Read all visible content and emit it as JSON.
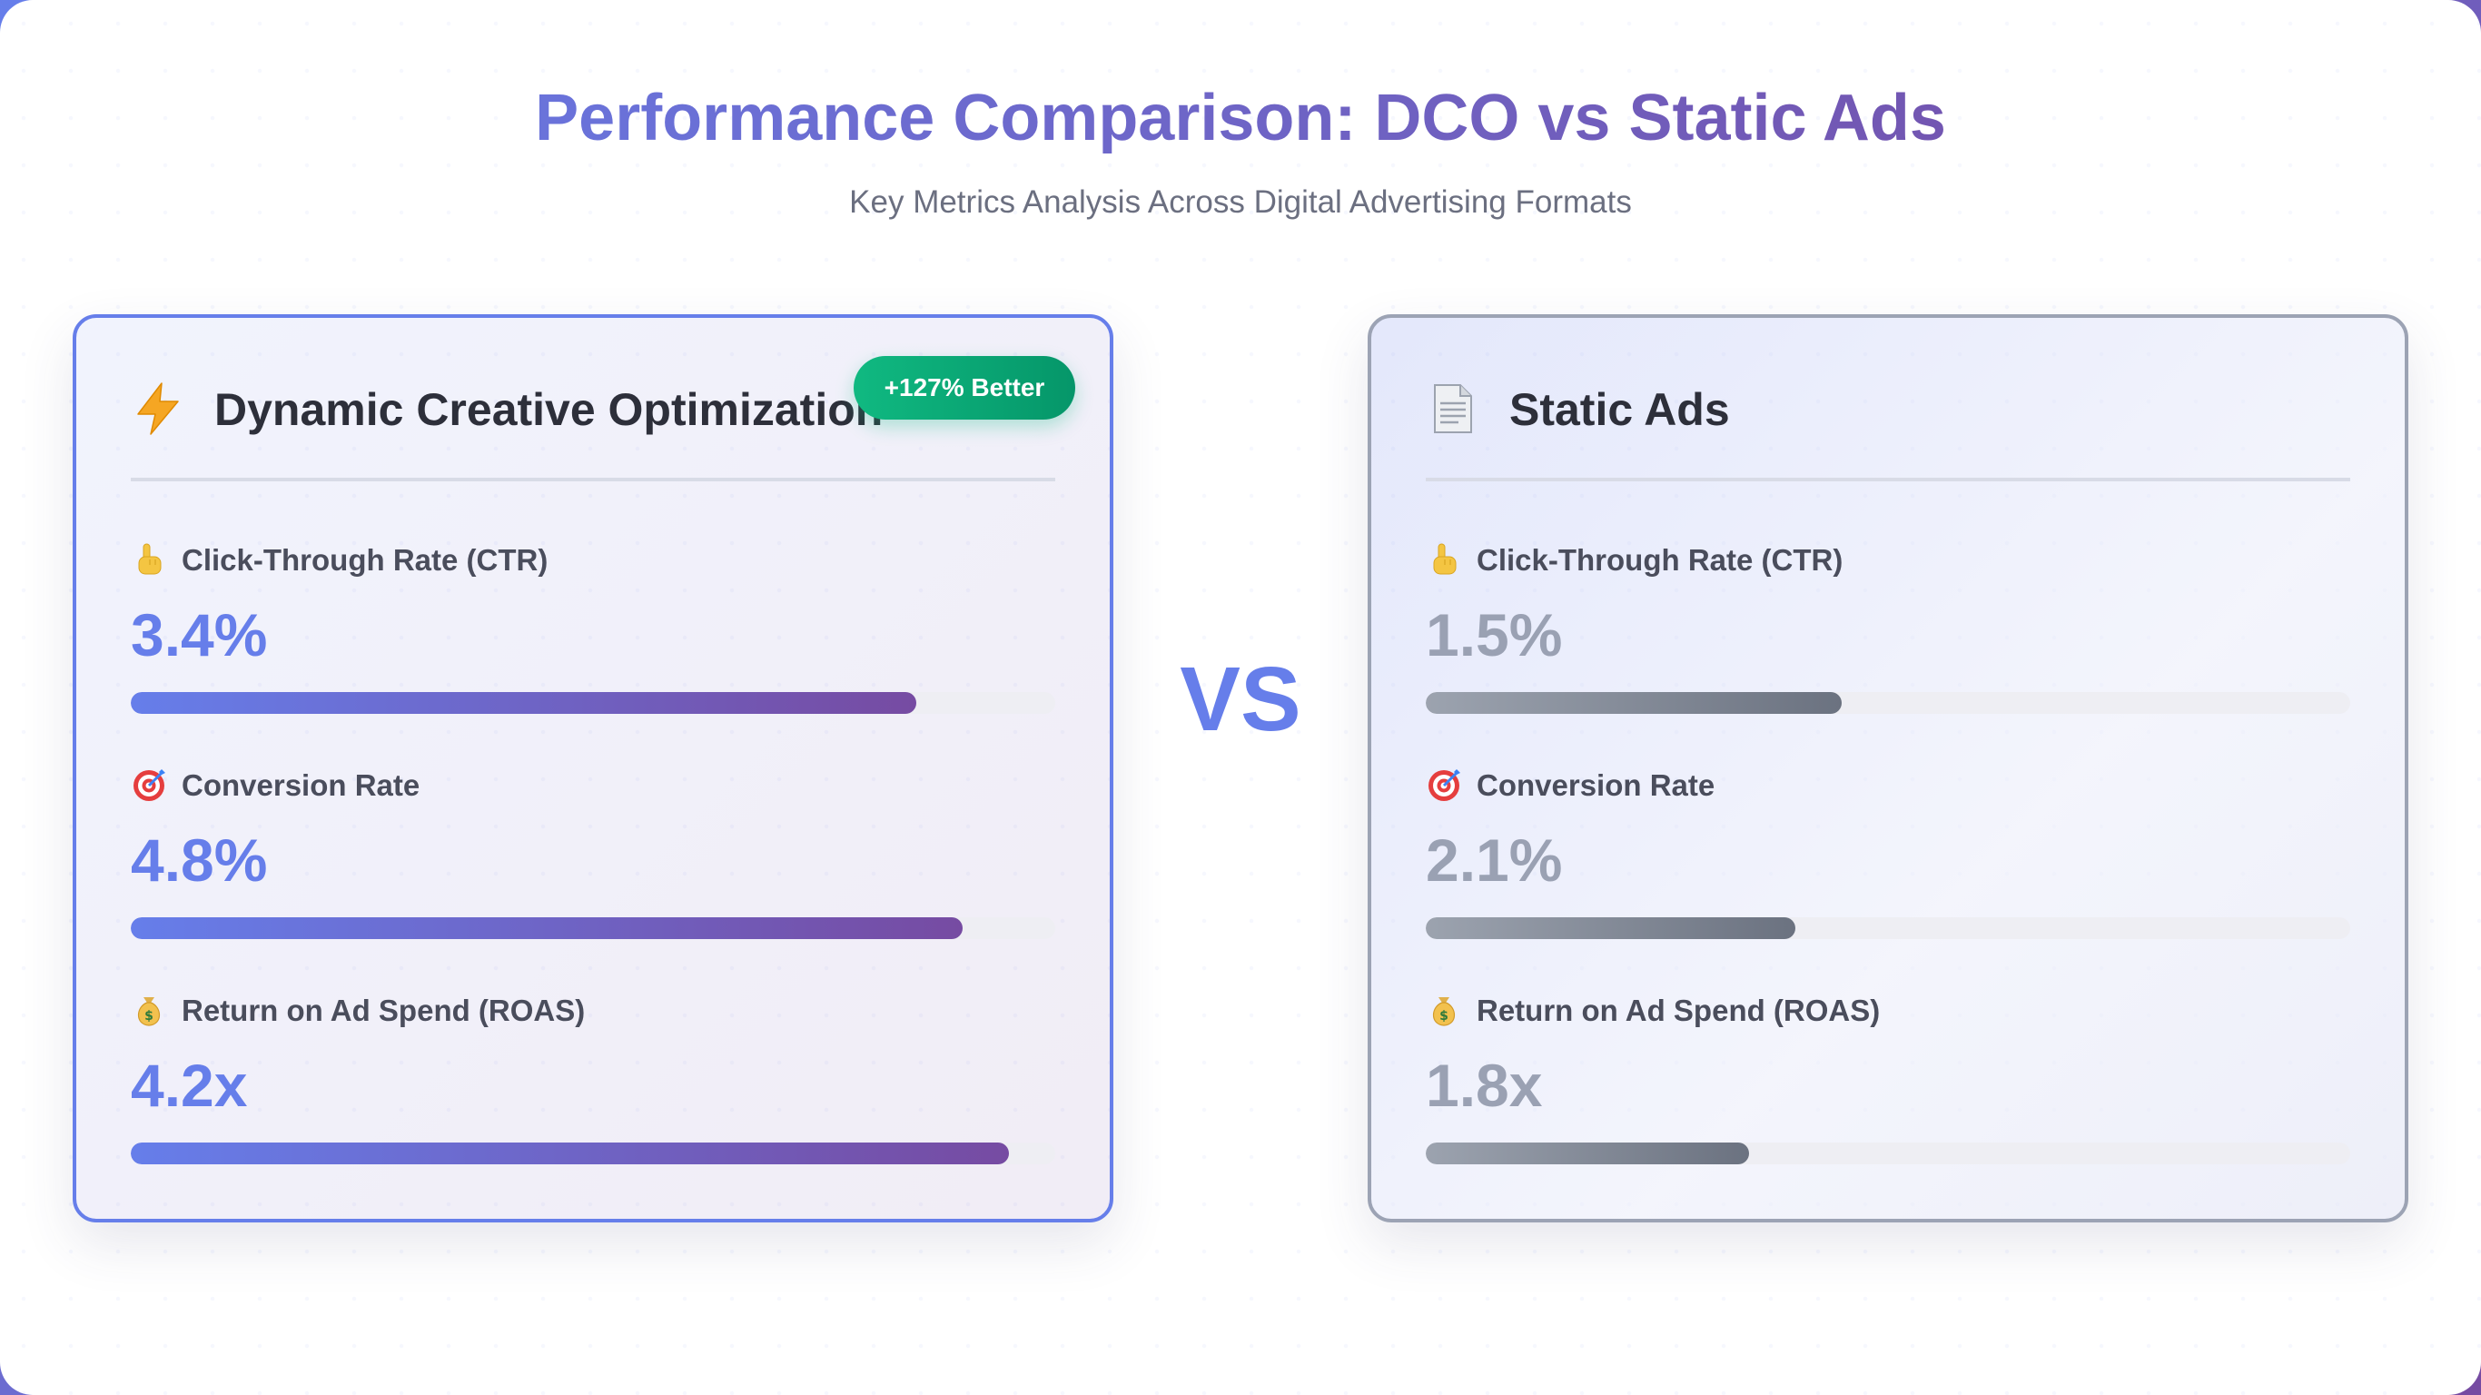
{
  "header": {
    "title": "Performance Comparison: DCO vs Static Ads",
    "subtitle": "Key Metrics Analysis Across Digital Advertising Formats"
  },
  "vs_label": "VS",
  "cards": {
    "dco": {
      "title": "Dynamic Creative Optimization",
      "icon": "lightning-icon",
      "badge": "+127% Better",
      "accent": "#667eea",
      "metrics": [
        {
          "icon": "pointing-hand-icon",
          "label": "Click-Through Rate (CTR)",
          "value": "3.4%",
          "bar_fill_percent": 85
        },
        {
          "icon": "target-icon",
          "label": "Conversion Rate",
          "value": "4.8%",
          "bar_fill_percent": 90
        },
        {
          "icon": "money-bag-icon",
          "label": "Return on Ad Spend (ROAS)",
          "value": "4.2x",
          "bar_fill_percent": 95
        }
      ]
    },
    "static": {
      "title": "Static Ads",
      "icon": "document-icon",
      "accent": "#9ca3af",
      "metrics": [
        {
          "icon": "pointing-hand-icon",
          "label": "Click-Through Rate (CTR)",
          "value": "1.5%",
          "bar_fill_percent": 45
        },
        {
          "icon": "target-icon",
          "label": "Conversion Rate",
          "value": "2.1%",
          "bar_fill_percent": 40
        },
        {
          "icon": "money-bag-icon",
          "label": "Return on Ad Spend (ROAS)",
          "value": "1.8x",
          "bar_fill_percent": 35
        }
      ]
    }
  },
  "chart_data": {
    "type": "bar",
    "title": "Performance Comparison: DCO vs Static Ads",
    "subtitle": "Key Metrics Analysis Across Digital Advertising Formats",
    "categories": [
      "Click-Through Rate (CTR)",
      "Conversion Rate",
      "Return on Ad Spend (ROAS)"
    ],
    "series": [
      {
        "name": "Dynamic Creative Optimization",
        "values": [
          3.4,
          4.8,
          4.2
        ],
        "labels": [
          "3.4%",
          "4.8%",
          "4.2x"
        ],
        "bar_fill_percent": [
          85,
          90,
          95
        ]
      },
      {
        "name": "Static Ads",
        "values": [
          1.5,
          2.1,
          1.8
        ],
        "labels": [
          "1.5%",
          "2.1%",
          "1.8x"
        ],
        "bar_fill_percent": [
          45,
          40,
          35
        ]
      }
    ],
    "annotations": [
      "+127% Better",
      "VS"
    ],
    "orientation": "horizontal"
  }
}
